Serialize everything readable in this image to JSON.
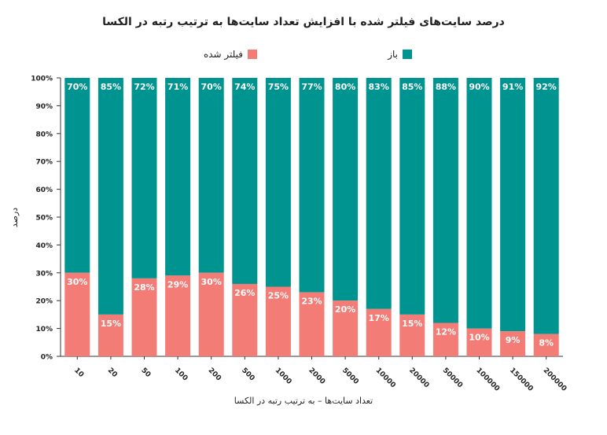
{
  "chart_data": {
    "type": "bar",
    "stacked": true,
    "title": "درصد سایت‌های فیلتر شده با افزایش تعداد سایت‌ها به ترتیب رتبه در الکسا",
    "xlabel": "تعداد سایت‌ها – به ترتیب رتبه در الکسا",
    "ylabel": "درصد",
    "ylim": [
      0,
      100
    ],
    "y_ticks": [
      "0%",
      "10%",
      "20%",
      "30%",
      "40%",
      "50%",
      "60%",
      "70%",
      "80%",
      "90%",
      "100%"
    ],
    "categories": [
      "10",
      "20",
      "50",
      "100",
      "200",
      "500",
      "1000",
      "2000",
      "5000",
      "10000",
      "20000",
      "50000",
      "100000",
      "150000",
      "200000"
    ],
    "series": [
      {
        "name": "فیلتر شده",
        "color": "#f47c76",
        "values": [
          30,
          15,
          28,
          29,
          30,
          26,
          25,
          23,
          20,
          17,
          15,
          12,
          10,
          9,
          8
        ]
      },
      {
        "name": "باز",
        "color": "#009490",
        "values": [
          70,
          85,
          72,
          71,
          70,
          74,
          75,
          77,
          80,
          83,
          85,
          88,
          90,
          91,
          92
        ]
      }
    ],
    "grid": false,
    "legend_position": "top"
  }
}
